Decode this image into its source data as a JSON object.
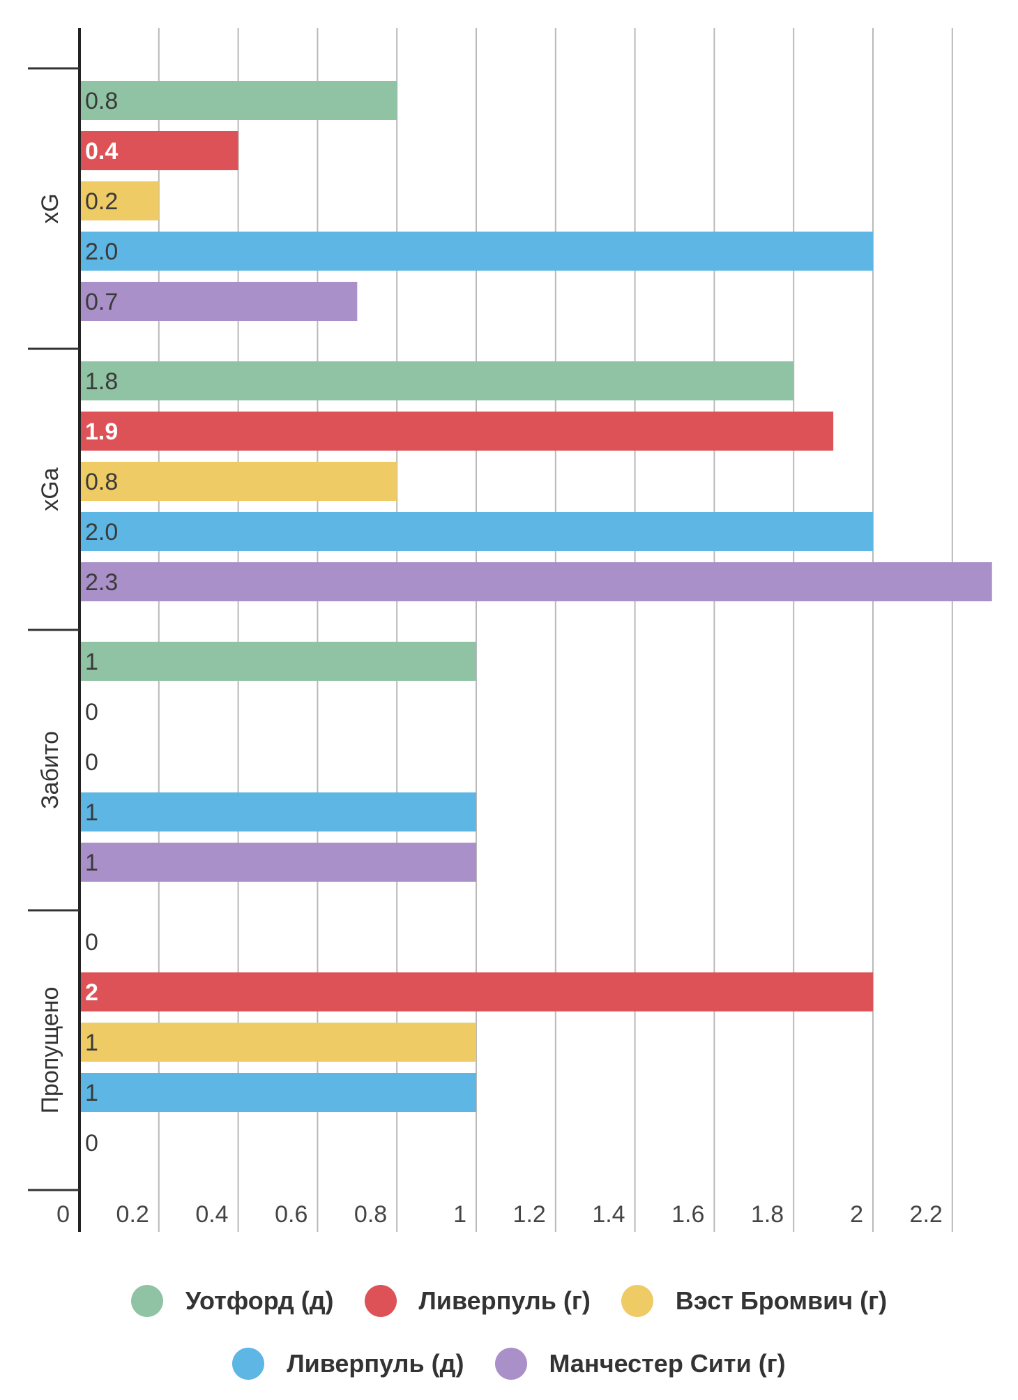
{
  "chart_data": {
    "type": "bar",
    "orientation": "horizontal",
    "categories": [
      "xG",
      "xGa",
      "Забито",
      "Пропущено"
    ],
    "series": [
      {
        "name": "Уотфорд (д)",
        "color": "#8fc3a4",
        "values": [
          0.8,
          1.8,
          1,
          0
        ],
        "labels": [
          "0.8",
          "1.8",
          "1",
          "0"
        ]
      },
      {
        "name": "Ливерпуль (г)",
        "color": "#dd5256",
        "values": [
          0.4,
          1.9,
          0,
          2
        ],
        "labels": [
          "0.4",
          "1.9",
          "0",
          "2"
        ]
      },
      {
        "name": "Вэст Бромвич (г)",
        "color": "#eecb65",
        "values": [
          0.2,
          0.8,
          0,
          1
        ],
        "labels": [
          "0.2",
          "0.8",
          "0",
          "1"
        ]
      },
      {
        "name": "Ливерпуль (д)",
        "color": "#5db6e4",
        "values": [
          2.0,
          2.0,
          1,
          1
        ],
        "labels": [
          "2.0",
          "2.0",
          "1",
          "1"
        ]
      },
      {
        "name": "Манчестер Сити (г)",
        "color": "#a990c8",
        "values": [
          0.7,
          2.3,
          1,
          0
        ],
        "labels": [
          "0.7",
          "2.3",
          "1",
          "0"
        ]
      }
    ],
    "x_ticks": [
      "0",
      "0.2",
      "0.4",
      "0.6",
      "0.8",
      "1",
      "1.2",
      "1.4",
      "1.6",
      "1.8",
      "2",
      "2.2"
    ],
    "xlim": [
      0,
      2.3
    ],
    "grid": true,
    "legend_placement": "bottom",
    "title": "",
    "xlabel": "",
    "ylabel": ""
  }
}
